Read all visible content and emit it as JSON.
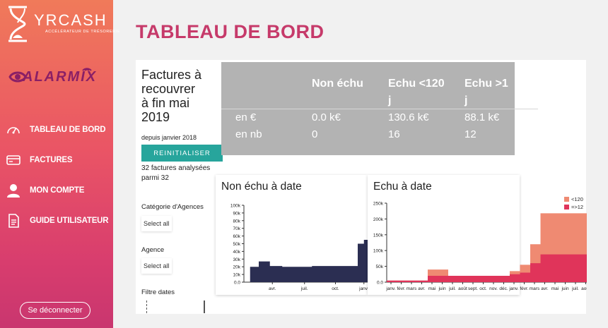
{
  "sidebar": {
    "brand": "YRCASH",
    "brand_sub": "ACCÉLÉRATEUR DE TRÉSORERIE",
    "product": "ALARMIX",
    "items": [
      {
        "label": "TABLEAU DE BORD",
        "icon": "gauge-icon"
      },
      {
        "label": "FACTURES",
        "icon": "card-icon"
      },
      {
        "label": "MON COMPTE",
        "icon": "user-icon"
      },
      {
        "label": "GUIDE UTILISATEUR",
        "icon": "document-icon"
      }
    ],
    "logout": "Se déconnecter"
  },
  "main": {
    "title": "TABLEAU DE BORD",
    "heading": [
      "Factures à",
      "recouvrer",
      "à fin mai",
      "2019"
    ],
    "since": "depuis janvier 2018",
    "reset": "REINITIALISER",
    "analysed": [
      "32 factures analysées",
      "parmi 32"
    ],
    "filters": {
      "category_label": "Catégorie d'Agences",
      "category_value": "Select all",
      "agency_label": "Agence",
      "agency_value": "Select all",
      "dates_label": "Filtre dates"
    }
  },
  "summary": {
    "headers": [
      "Non échu",
      "Echu <120",
      "j",
      "Echu >1",
      "j"
    ],
    "rows": [
      {
        "label": "en €",
        "values": [
          "0.0 k€",
          "130.6 k€",
          "88.1 k€"
        ]
      },
      {
        "label": "en nb",
        "values": [
          "0",
          "16",
          "12"
        ]
      }
    ]
  },
  "chart_data": [
    {
      "type": "area",
      "title": "Non échu à date",
      "y_ticks": [
        "0.0",
        "10k",
        "20k",
        "30k",
        "40k",
        "50k",
        "60k",
        "70k",
        "80k",
        "90k",
        "100k"
      ],
      "x_ticks": [
        "avr.",
        "juil.",
        "oct.",
        "janv."
      ],
      "ylim": [
        0,
        100000
      ],
      "steps": [
        [
          0,
          0
        ],
        [
          0.05,
          20000
        ],
        [
          0.12,
          27000
        ],
        [
          0.21,
          21000
        ],
        [
          0.31,
          20000
        ],
        [
          0.55,
          21000
        ],
        [
          0.92,
          50000
        ],
        [
          0.97,
          55000
        ],
        [
          1.0,
          55000
        ]
      ],
      "color": "#2b2e52"
    },
    {
      "type": "area",
      "title": "Echu à date",
      "legend": [
        "<120",
        "=>12"
      ],
      "y_ticks": [
        "0.0",
        "50k",
        "100k",
        "150k",
        "200k",
        "250k"
      ],
      "x_ticks": [
        "janv.",
        "févr.",
        "mars",
        "avr.",
        "mai",
        "juin",
        "juil.",
        "août",
        "sept.",
        "oct.",
        "nov.",
        "déc.",
        "janv.",
        "févr.",
        "mars",
        "avr.",
        "mai",
        "juin",
        "juil.",
        "août"
      ],
      "ylim": [
        0,
        250000
      ],
      "colors": [
        "#ef8a72",
        "#e0345a"
      ]
    }
  ]
}
